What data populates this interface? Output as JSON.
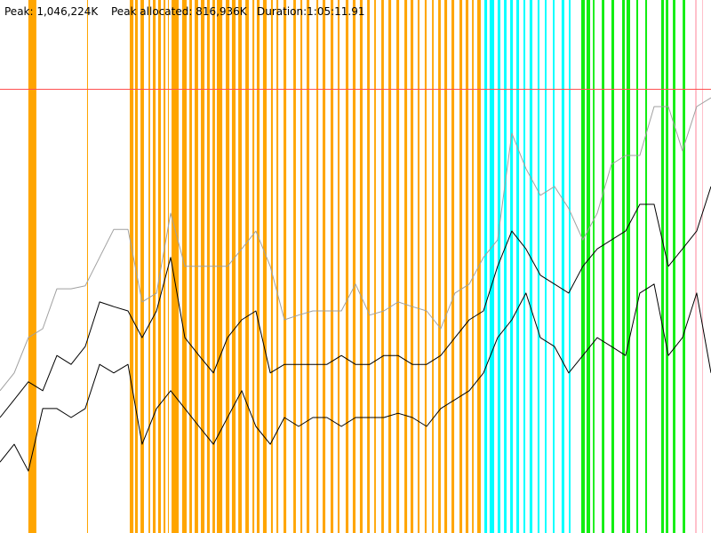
{
  "chart_data": {
    "type": "line",
    "annotations": [
      "Peak: 1,046,224K",
      "Peak allocated: 816,936K",
      "Duration:1:05:11.91"
    ],
    "xlim": [
      0,
      3911.91
    ],
    "ylim": [
      0,
      1255000
    ],
    "x": [
      0,
      78,
      156,
      235,
      313,
      391,
      469,
      548,
      626,
      704,
      782,
      861,
      939,
      1017,
      1095,
      1174,
      1252,
      1330,
      1408,
      1487,
      1565,
      1643,
      1721,
      1799,
      1878,
      1956,
      2034,
      2112,
      2190,
      2269,
      2347,
      2425,
      2503,
      2582,
      2660,
      2738,
      2816,
      2894,
      2973,
      3051,
      3129,
      3207,
      3286,
      3364,
      3442,
      3520,
      3599,
      3677,
      3755,
      3833,
      3911.91
    ],
    "series": [
      {
        "color": "#a0a0a0",
        "values": [
          335000,
          377000,
          460000,
          481000,
          575000,
          575000,
          582000,
          649000,
          715000,
          715000,
          544000,
          565000,
          753000,
          628000,
          628000,
          628000,
          628000,
          669000,
          711000,
          628000,
          502000,
          513000,
          523000,
          523000,
          523000,
          586000,
          513000,
          523000,
          544000,
          533000,
          523000,
          481000,
          565000,
          586000,
          649000,
          690000,
          941000,
          858000,
          795000,
          816000,
          764000,
          690000,
          753000,
          868000,
          889000,
          889000,
          1004000,
          1004000,
          900000,
          1004000,
          1025000
        ]
      },
      {
        "color": "#000000",
        "values": [
          272000,
          314000,
          356000,
          335000,
          418000,
          397000,
          439000,
          544000,
          533000,
          523000,
          460000,
          523000,
          649000,
          460000,
          418000,
          377000,
          460000,
          502000,
          523000,
          377000,
          397000,
          397000,
          397000,
          397000,
          418000,
          397000,
          397000,
          418000,
          418000,
          397000,
          397000,
          418000,
          460000,
          502000,
          523000,
          628000,
          711000,
          669000,
          607000,
          586000,
          565000,
          628000,
          669000,
          690000,
          711000,
          774000,
          774000,
          628000,
          669000,
          711000,
          816000
        ]
      },
      {
        "color": "#000000",
        "values": [
          167000,
          209000,
          146000,
          293000,
          293000,
          272000,
          293000,
          397000,
          377000,
          397000,
          209000,
          293000,
          335000,
          293000,
          251000,
          209000,
          272000,
          335000,
          251000,
          209000,
          272000,
          251000,
          272000,
          272000,
          251000,
          272000,
          272000,
          272000,
          282000,
          272000,
          251000,
          293000,
          314000,
          335000,
          377000,
          460000,
          502000,
          565000,
          460000,
          439000,
          377000,
          418000,
          460000,
          439000,
          418000,
          565000,
          586000,
          418000,
          460000,
          565000,
          377000
        ]
      }
    ],
    "bands": [
      {
        "color": "#ffa500",
        "start": [
          156,
          479,
          714,
          743,
          773,
          817,
          841,
          870,
          900,
          924,
          944,
          1002,
          1042,
          1071,
          1105,
          1139,
          1169,
          1193,
          1242,
          1276,
          1311,
          1350,
          1389,
          1413,
          1447,
          1491,
          1521,
          1560,
          1614,
          1653,
          1687,
          1741,
          1775,
          1819,
          1858,
          1902,
          1941,
          1980,
          2020,
          2059,
          2098,
          2137,
          2181,
          2225,
          2259,
          2298,
          2337,
          2377,
          2411,
          2445,
          2484,
          2528,
          2562,
          2597,
          2626
        ],
        "end": [
          200,
          484,
          734,
          758,
          792,
          826,
          856,
          885,
          910,
          929,
          983,
          1027,
          1056,
          1090,
          1125,
          1154,
          1183,
          1223,
          1262,
          1296,
          1330,
          1369,
          1399,
          1428,
          1467,
          1501,
          1531,
          1575,
          1628,
          1663,
          1702,
          1751,
          1790,
          1834,
          1868,
          1917,
          1956,
          1995,
          2034,
          2068,
          2112,
          2152,
          2196,
          2240,
          2274,
          2308,
          2347,
          2386,
          2425,
          2460,
          2499,
          2543,
          2577,
          2606,
          2645
        ]
      },
      {
        "color": "#00ffff",
        "start": [
          2665,
          2694,
          2738,
          2773,
          2807,
          2841,
          2880,
          2914,
          2958,
          2998,
          3042,
          3090,
          3130
        ],
        "end": [
          2680,
          2719,
          2753,
          2787,
          2822,
          2856,
          2890,
          2929,
          2968,
          3007,
          3051,
          3105,
          3139
        ]
      },
      {
        "color": "#11ee11",
        "start": [
          3198,
          3227,
          3262,
          3311,
          3364,
          3423,
          3447,
          3501,
          3550,
          3638,
          3663,
          3702,
          3756
        ],
        "end": [
          3218,
          3247,
          3271,
          3325,
          3379,
          3438,
          3467,
          3511,
          3560,
          3653,
          3677,
          3716,
          3770
        ]
      },
      {
        "color": "#ffc0cb",
        "start": [
          3824,
          3863
        ],
        "end": [
          3834,
          3868
        ]
      }
    ],
    "reference_line": {
      "value": 1046224,
      "color": "#ff5050"
    }
  }
}
